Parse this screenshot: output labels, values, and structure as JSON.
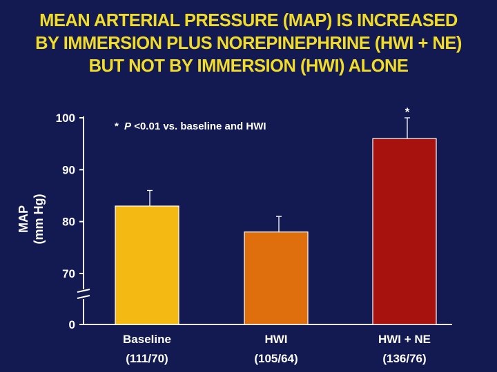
{
  "title_lines": [
    "MEAN ARTERIAL PRESSURE (MAP) IS INCREASED",
    "BY IMMERSION PLUS NOREPINEPHRINE (HWI + NE)",
    "BUT NOT BY IMMERSION (HWI) ALONE"
  ],
  "note": {
    "star": "*",
    "italic": "P",
    "text": "<0.01 vs. baseline and HWI"
  },
  "colors": {
    "background": "#131a52",
    "title": "#f2dc2a",
    "axis": "#ffffff"
  },
  "chart_data": {
    "type": "bar",
    "title": "MEAN ARTERIAL PRESSURE (MAP) IS INCREASED BY IMMERSION PLUS NOREPINEPHRINE (HWI + NE) BUT NOT BY IMMERSION (HWI) ALONE",
    "ylabel_lines": [
      "MAP",
      "(mm Hg)"
    ],
    "xlabel": "",
    "ylim": [
      0,
      100
    ],
    "axis_break": "between 0 and 70",
    "y_ticks": [
      "0",
      "70",
      "80",
      "90",
      "100"
    ],
    "categories": [
      "Baseline",
      "HWI",
      "HWI + NE"
    ],
    "sublabels": [
      "(111/70)",
      "(105/64)",
      "(136/76)"
    ],
    "values": [
      83,
      78,
      96
    ],
    "error_upper": [
      86,
      81,
      100
    ],
    "bar_colors": [
      "#f5b914",
      "#de6f0c",
      "#a8120e"
    ],
    "significance": [
      "",
      "",
      "*"
    ],
    "legend": "none",
    "grid": false
  }
}
